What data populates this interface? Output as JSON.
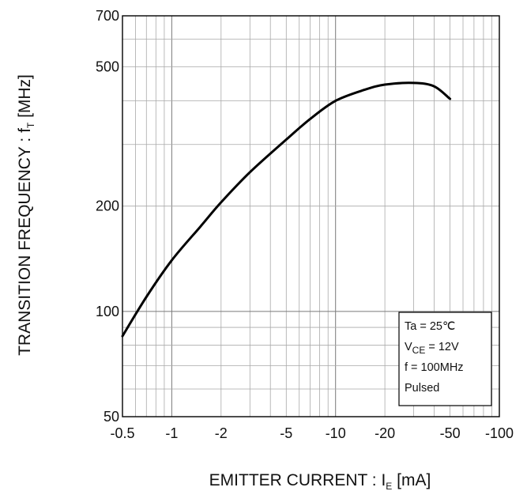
{
  "chart_data": {
    "type": "line",
    "title": "",
    "xlabel": {
      "main": "EMITTER CURRENT : I",
      "sub": "E",
      "unit": " [mA]"
    },
    "ylabel": {
      "main": "TRANSITION FREQUENCY : f",
      "sub": "T",
      "unit": " [MHz]"
    },
    "x_scale": "log",
    "y_scale": "log",
    "x_abs_range": [
      0.5,
      100
    ],
    "ylim": [
      50,
      700
    ],
    "x_ticks": [
      {
        "value": 0.5,
        "label": "-0.5"
      },
      {
        "value": 1,
        "label": "-1"
      },
      {
        "value": 2,
        "label": "-2"
      },
      {
        "value": 5,
        "label": "-5"
      },
      {
        "value": 10,
        "label": "-10"
      },
      {
        "value": 20,
        "label": "-20"
      },
      {
        "value": 50,
        "label": "-50"
      },
      {
        "value": 100,
        "label": "-100"
      }
    ],
    "y_ticks": [
      {
        "value": 50,
        "label": "50"
      },
      {
        "value": 100,
        "label": "100"
      },
      {
        "value": 200,
        "label": "200"
      },
      {
        "value": 500,
        "label": "500"
      },
      {
        "value": 700,
        "label": "700"
      }
    ],
    "grid": true,
    "legend": {
      "placement": "bottom-right",
      "lines": [
        {
          "main": "Ta = 25℃",
          "sub": "",
          "rest": ""
        },
        {
          "main": "V",
          "sub": "CE",
          "rest": " = 12V"
        },
        {
          "main": "f = 100MHz",
          "sub": "",
          "rest": ""
        },
        {
          "main": "Pulsed",
          "sub": "",
          "rest": ""
        }
      ]
    },
    "series": [
      {
        "color": "#000000",
        "x": [
          0.5,
          0.7,
          1,
          1.5,
          2,
          3,
          5,
          7,
          10,
          15,
          20,
          30,
          40,
          50
        ],
        "y": [
          85,
          110,
          140,
          175,
          205,
          250,
          310,
          355,
          400,
          430,
          445,
          450,
          440,
          405
        ]
      }
    ]
  }
}
